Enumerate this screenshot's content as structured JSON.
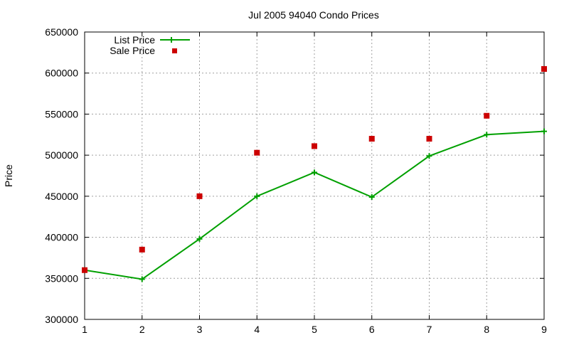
{
  "chart_data": {
    "type": "line",
    "title": "Jul 2005 94040 Condo Prices",
    "xlabel": "",
    "ylabel": "Price",
    "xlim": [
      1,
      9
    ],
    "ylim": [
      300000,
      650000
    ],
    "x_ticks": [
      1,
      2,
      3,
      4,
      5,
      6,
      7,
      8,
      9
    ],
    "y_ticks": [
      300000,
      350000,
      400000,
      450000,
      500000,
      550000,
      600000,
      650000
    ],
    "grid": true,
    "legend_position": "top-left",
    "series": [
      {
        "name": "List Price",
        "style": "linespoints",
        "color": "#00a000",
        "x": [
          1,
          2,
          3,
          4,
          5,
          6,
          7,
          8,
          9
        ],
        "values": [
          360000,
          349000,
          398000,
          450000,
          479000,
          449000,
          499000,
          525000,
          529000
        ]
      },
      {
        "name": "Sale Price",
        "style": "points",
        "color": "#cc0000",
        "x": [
          1,
          2,
          3,
          4,
          5,
          6,
          7,
          8,
          9
        ],
        "values": [
          360000,
          385000,
          450000,
          503000,
          511000,
          520000,
          520000,
          548000,
          605000
        ]
      }
    ]
  }
}
